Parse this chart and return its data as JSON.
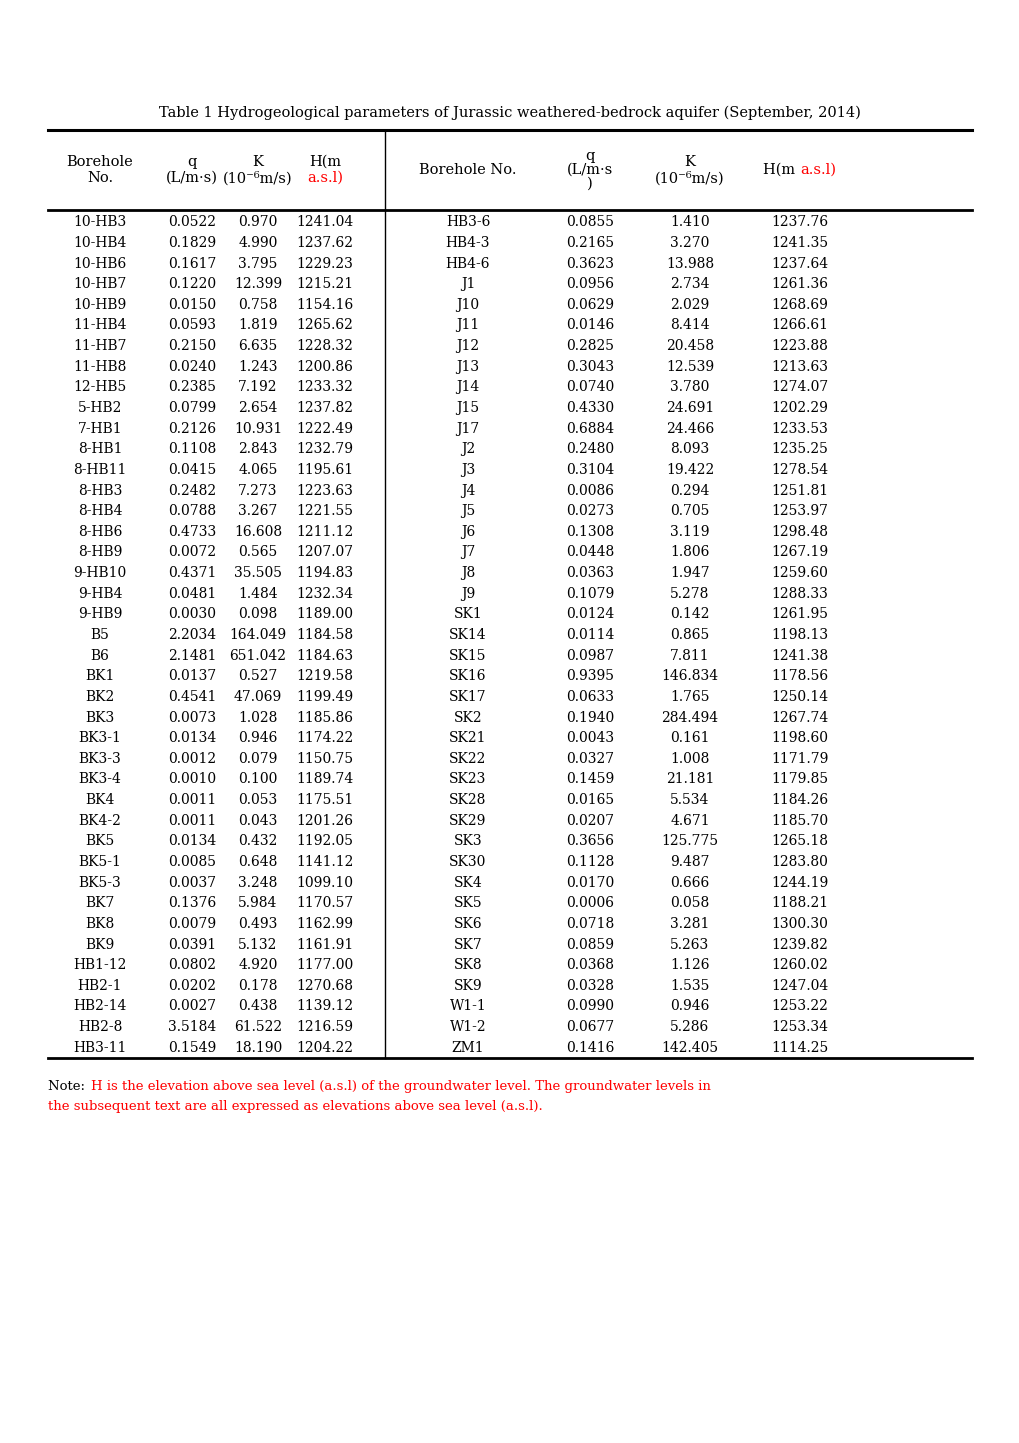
{
  "title": "Table 1 Hydrogeological parameters of Jurassic weathered-bedrock aquifer (September, 2014)",
  "left_data": [
    [
      "10-HB3",
      "0.0522",
      "0.970",
      "1241.04"
    ],
    [
      "10-HB4",
      "0.1829",
      "4.990",
      "1237.62"
    ],
    [
      "10-HB6",
      "0.1617",
      "3.795",
      "1229.23"
    ],
    [
      "10-HB7",
      "0.1220",
      "12.399",
      "1215.21"
    ],
    [
      "10-HB9",
      "0.0150",
      "0.758",
      "1154.16"
    ],
    [
      "11-HB4",
      "0.0593",
      "1.819",
      "1265.62"
    ],
    [
      "11-HB7",
      "0.2150",
      "6.635",
      "1228.32"
    ],
    [
      "11-HB8",
      "0.0240",
      "1.243",
      "1200.86"
    ],
    [
      "12-HB5",
      "0.2385",
      "7.192",
      "1233.32"
    ],
    [
      "5-HB2",
      "0.0799",
      "2.654",
      "1237.82"
    ],
    [
      "7-HB1",
      "0.2126",
      "10.931",
      "1222.49"
    ],
    [
      "8-HB1",
      "0.1108",
      "2.843",
      "1232.79"
    ],
    [
      "8-HB11",
      "0.0415",
      "4.065",
      "1195.61"
    ],
    [
      "8-HB3",
      "0.2482",
      "7.273",
      "1223.63"
    ],
    [
      "8-HB4",
      "0.0788",
      "3.267",
      "1221.55"
    ],
    [
      "8-HB6",
      "0.4733",
      "16.608",
      "1211.12"
    ],
    [
      "8-HB9",
      "0.0072",
      "0.565",
      "1207.07"
    ],
    [
      "9-HB10",
      "0.4371",
      "35.505",
      "1194.83"
    ],
    [
      "9-HB4",
      "0.0481",
      "1.484",
      "1232.34"
    ],
    [
      "9-HB9",
      "0.0030",
      "0.098",
      "1189.00"
    ],
    [
      "B5",
      "2.2034",
      "164.049",
      "1184.58"
    ],
    [
      "B6",
      "2.1481",
      "651.042",
      "1184.63"
    ],
    [
      "BK1",
      "0.0137",
      "0.527",
      "1219.58"
    ],
    [
      "BK2",
      "0.4541",
      "47.069",
      "1199.49"
    ],
    [
      "BK3",
      "0.0073",
      "1.028",
      "1185.86"
    ],
    [
      "BK3-1",
      "0.0134",
      "0.946",
      "1174.22"
    ],
    [
      "BK3-3",
      "0.0012",
      "0.079",
      "1150.75"
    ],
    [
      "BK3-4",
      "0.0010",
      "0.100",
      "1189.74"
    ],
    [
      "BK4",
      "0.0011",
      "0.053",
      "1175.51"
    ],
    [
      "BK4-2",
      "0.0011",
      "0.043",
      "1201.26"
    ],
    [
      "BK5",
      "0.0134",
      "0.432",
      "1192.05"
    ],
    [
      "BK5-1",
      "0.0085",
      "0.648",
      "1141.12"
    ],
    [
      "BK5-3",
      "0.0037",
      "3.248",
      "1099.10"
    ],
    [
      "BK7",
      "0.1376",
      "5.984",
      "1170.57"
    ],
    [
      "BK8",
      "0.0079",
      "0.493",
      "1162.99"
    ],
    [
      "BK9",
      "0.0391",
      "5.132",
      "1161.91"
    ],
    [
      "HB1-12",
      "0.0802",
      "4.920",
      "1177.00"
    ],
    [
      "HB2-1",
      "0.0202",
      "0.178",
      "1270.68"
    ],
    [
      "HB2-14",
      "0.0027",
      "0.438",
      "1139.12"
    ],
    [
      "HB2-8",
      "3.5184",
      "61.522",
      "1216.59"
    ],
    [
      "HB3-11",
      "0.1549",
      "18.190",
      "1204.22"
    ]
  ],
  "right_data": [
    [
      "HB3-6",
      "0.0855",
      "1.410",
      "1237.76"
    ],
    [
      "HB4-3",
      "0.2165",
      "3.270",
      "1241.35"
    ],
    [
      "HB4-6",
      "0.3623",
      "13.988",
      "1237.64"
    ],
    [
      "J1",
      "0.0956",
      "2.734",
      "1261.36"
    ],
    [
      "J10",
      "0.0629",
      "2.029",
      "1268.69"
    ],
    [
      "J11",
      "0.0146",
      "8.414",
      "1266.61"
    ],
    [
      "J12",
      "0.2825",
      "20.458",
      "1223.88"
    ],
    [
      "J13",
      "0.3043",
      "12.539",
      "1213.63"
    ],
    [
      "J14",
      "0.0740",
      "3.780",
      "1274.07"
    ],
    [
      "J15",
      "0.4330",
      "24.691",
      "1202.29"
    ],
    [
      "J17",
      "0.6884",
      "24.466",
      "1233.53"
    ],
    [
      "J2",
      "0.2480",
      "8.093",
      "1235.25"
    ],
    [
      "J3",
      "0.3104",
      "19.422",
      "1278.54"
    ],
    [
      "J4",
      "0.0086",
      "0.294",
      "1251.81"
    ],
    [
      "J5",
      "0.0273",
      "0.705",
      "1253.97"
    ],
    [
      "J6",
      "0.1308",
      "3.119",
      "1298.48"
    ],
    [
      "J7",
      "0.0448",
      "1.806",
      "1267.19"
    ],
    [
      "J8",
      "0.0363",
      "1.947",
      "1259.60"
    ],
    [
      "J9",
      "0.1079",
      "5.278",
      "1288.33"
    ],
    [
      "SK1",
      "0.0124",
      "0.142",
      "1261.95"
    ],
    [
      "SK14",
      "0.0114",
      "0.865",
      "1198.13"
    ],
    [
      "SK15",
      "0.0987",
      "7.811",
      "1241.38"
    ],
    [
      "SK16",
      "0.9395",
      "146.834",
      "1178.56"
    ],
    [
      "SK17",
      "0.0633",
      "1.765",
      "1250.14"
    ],
    [
      "SK2",
      "0.1940",
      "284.494",
      "1267.74"
    ],
    [
      "SK21",
      "0.0043",
      "0.161",
      "1198.60"
    ],
    [
      "SK22",
      "0.0327",
      "1.008",
      "1171.79"
    ],
    [
      "SK23",
      "0.1459",
      "21.181",
      "1179.85"
    ],
    [
      "SK28",
      "0.0165",
      "5.534",
      "1184.26"
    ],
    [
      "SK29",
      "0.0207",
      "4.671",
      "1185.70"
    ],
    [
      "SK3",
      "0.3656",
      "125.775",
      "1265.18"
    ],
    [
      "SK30",
      "0.1128",
      "9.487",
      "1283.80"
    ],
    [
      "SK4",
      "0.0170",
      "0.666",
      "1244.19"
    ],
    [
      "SK5",
      "0.0006",
      "0.058",
      "1188.21"
    ],
    [
      "SK6",
      "0.0718",
      "3.281",
      "1300.30"
    ],
    [
      "SK7",
      "0.0859",
      "5.263",
      "1239.82"
    ],
    [
      "SK8",
      "0.0368",
      "1.126",
      "1260.02"
    ],
    [
      "SK9",
      "0.0328",
      "1.535",
      "1247.04"
    ],
    [
      "W1-1",
      "0.0990",
      "0.946",
      "1253.22"
    ],
    [
      "W1-2",
      "0.0677",
      "5.286",
      "1253.34"
    ],
    [
      "ZM1",
      "0.1416",
      "142.405",
      "1114.25"
    ]
  ]
}
